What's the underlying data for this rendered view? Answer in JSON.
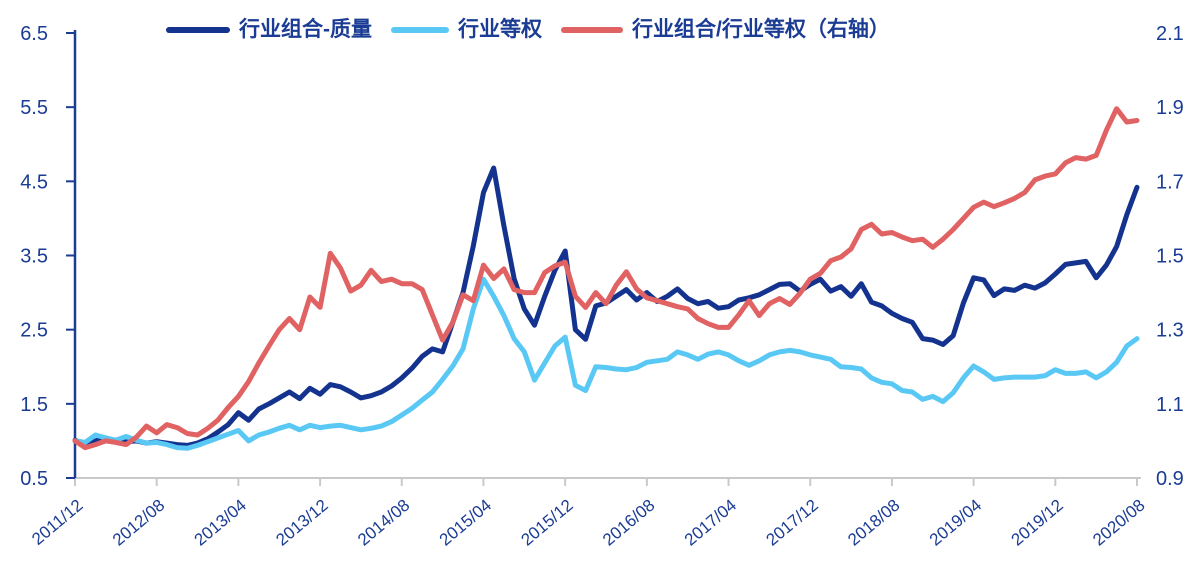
{
  "colors": {
    "navy": "#14338F",
    "cyan": "#5AC8F5",
    "red": "#E06262",
    "axis_text": "#1B3C94",
    "left_axis_line": "#1B3C94",
    "bottom_axis_line": "#C9C9C9",
    "background": "#FFFFFF"
  },
  "legend": {
    "items": [
      {
        "label": "行业组合-质量",
        "color": "#14338F",
        "swatch_width": 64
      },
      {
        "label": "行业等权",
        "color": "#5AC8F5",
        "swatch_width": 58
      },
      {
        "label": "行业组合/行业等权（右轴）",
        "color": "#E06262",
        "swatch_width": 62
      }
    ]
  },
  "chart_data": {
    "type": "line",
    "title": "",
    "x_start": "2011/12",
    "x_end": "2020/08",
    "x_interval": "monthly",
    "x_tick_labels": [
      "2011/12",
      "2012/08",
      "2013/04",
      "2013/12",
      "2014/08",
      "2015/04",
      "2015/12",
      "2016/08",
      "2017/04",
      "2017/12",
      "2018/08",
      "2019/04",
      "2019/12",
      "2020/08"
    ],
    "x_tick_every_months": 8,
    "left_axis": {
      "ticks": [
        "6.5",
        "5.5",
        "4.5",
        "3.5",
        "2.5",
        "1.5",
        "0.5"
      ],
      "min": 0.5,
      "max": 6.5
    },
    "right_axis": {
      "ticks": [
        "2.1",
        "1.9",
        "1.7",
        "1.5",
        "1.3",
        "1.1",
        "0.9"
      ],
      "min": 0.9,
      "max": 2.1
    },
    "grid": "off",
    "legend_position": "top",
    "series": [
      {
        "name": "行业组合-质量",
        "axis": "left",
        "color_key": "navy",
        "values": [
          1.01,
          0.96,
          1.0,
          1.04,
          1.0,
          0.99,
          1.0,
          0.97,
          0.99,
          0.97,
          0.95,
          0.94,
          0.97,
          1.03,
          1.12,
          1.22,
          1.38,
          1.28,
          1.43,
          1.5,
          1.58,
          1.66,
          1.57,
          1.71,
          1.63,
          1.76,
          1.73,
          1.66,
          1.58,
          1.61,
          1.66,
          1.74,
          1.85,
          1.98,
          2.14,
          2.24,
          2.2,
          2.6,
          3.0,
          3.63,
          4.35,
          4.68,
          3.9,
          3.19,
          2.78,
          2.56,
          2.95,
          3.3,
          3.56,
          2.5,
          2.37,
          2.82,
          2.86,
          2.95,
          3.04,
          2.9,
          3.0,
          2.88,
          2.95,
          3.05,
          2.92,
          2.85,
          2.88,
          2.79,
          2.81,
          2.9,
          2.93,
          2.97,
          3.04,
          3.11,
          3.12,
          3.02,
          3.11,
          3.18,
          3.02,
          3.08,
          2.95,
          3.12,
          2.87,
          2.82,
          2.72,
          2.65,
          2.6,
          2.38,
          2.36,
          2.3,
          2.42,
          2.86,
          3.2,
          3.17,
          2.96,
          3.05,
          3.03,
          3.1,
          3.06,
          3.13,
          3.25,
          3.38,
          3.4,
          3.42,
          3.2,
          3.37,
          3.62,
          4.05,
          4.42
        ]
      },
      {
        "name": "行业等权",
        "axis": "left",
        "color_key": "cyan",
        "values": [
          1.0,
          0.98,
          1.08,
          1.04,
          1.01,
          1.06,
          1.01,
          0.97,
          0.98,
          0.95,
          0.91,
          0.9,
          0.94,
          0.99,
          1.04,
          1.09,
          1.14,
          1.0,
          1.08,
          1.12,
          1.17,
          1.21,
          1.15,
          1.21,
          1.18,
          1.2,
          1.21,
          1.18,
          1.15,
          1.17,
          1.2,
          1.26,
          1.35,
          1.44,
          1.55,
          1.66,
          1.83,
          2.01,
          2.24,
          2.78,
          3.18,
          2.95,
          2.69,
          2.38,
          2.2,
          1.82,
          2.05,
          2.28,
          2.4,
          1.75,
          1.68,
          2.0,
          1.99,
          1.97,
          1.96,
          1.99,
          2.06,
          2.08,
          2.1,
          2.2,
          2.16,
          2.1,
          2.17,
          2.2,
          2.16,
          2.08,
          2.02,
          2.08,
          2.16,
          2.2,
          2.22,
          2.2,
          2.16,
          2.13,
          2.1,
          2.0,
          1.99,
          1.97,
          1.85,
          1.79,
          1.77,
          1.68,
          1.66,
          1.56,
          1.6,
          1.53,
          1.65,
          1.85,
          2.01,
          1.93,
          1.83,
          1.85,
          1.86,
          1.86,
          1.86,
          1.88,
          1.96,
          1.91,
          1.91,
          1.93,
          1.85,
          1.93,
          2.06,
          2.28,
          2.38
        ]
      },
      {
        "name": "行业组合/行业等权（右轴）",
        "axis": "right",
        "color_key": "red",
        "values": [
          1.0,
          0.982,
          0.99,
          1.0,
          0.996,
          0.99,
          1.01,
          1.04,
          1.022,
          1.044,
          1.036,
          1.02,
          1.016,
          1.034,
          1.056,
          1.09,
          1.12,
          1.16,
          1.21,
          1.256,
          1.3,
          1.33,
          1.3,
          1.388,
          1.36,
          1.506,
          1.466,
          1.404,
          1.42,
          1.46,
          1.43,
          1.436,
          1.424,
          1.424,
          1.408,
          1.34,
          1.272,
          1.32,
          1.394,
          1.378,
          1.474,
          1.438,
          1.464,
          1.408,
          1.4,
          1.4,
          1.454,
          1.472,
          1.482,
          1.39,
          1.36,
          1.4,
          1.37,
          1.42,
          1.456,
          1.41,
          1.386,
          1.378,
          1.37,
          1.362,
          1.356,
          1.33,
          1.316,
          1.306,
          1.306,
          1.34,
          1.378,
          1.338,
          1.37,
          1.384,
          1.368,
          1.398,
          1.436,
          1.452,
          1.486,
          1.496,
          1.518,
          1.57,
          1.584,
          1.558,
          1.562,
          1.55,
          1.54,
          1.544,
          1.522,
          1.544,
          1.57,
          1.6,
          1.63,
          1.644,
          1.632,
          1.642,
          1.654,
          1.67,
          1.704,
          1.714,
          1.72,
          1.75,
          1.764,
          1.76,
          1.77,
          1.838,
          1.896,
          1.86,
          1.864
        ]
      }
    ]
  }
}
